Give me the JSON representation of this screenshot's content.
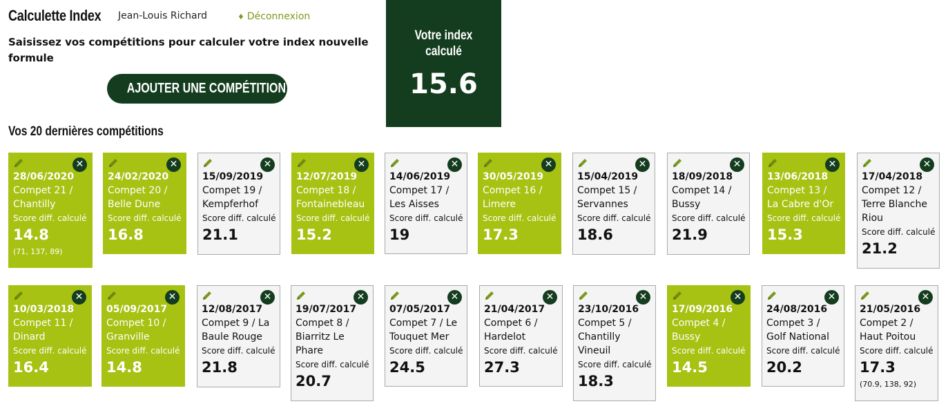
{
  "header": {
    "app_title": "Calculette Index",
    "user_name": "Jean-Louis Richard",
    "logout_label": "Déconnexion"
  },
  "intro": "Saisissez vos compétitions pour calculer votre index nouvelle formule",
  "add_button_label": "AJOUTER UNE COMPÉTITION",
  "index_panel": {
    "label": "Votre index calculé",
    "value": "15.6"
  },
  "section_title": "Vos 20 dernières compétitions",
  "score_label": "Score diff. calculé",
  "colors": {
    "dark_green": "#143d1f",
    "lime": "#a7c212"
  },
  "icons": {
    "edit": "pencil-icon",
    "delete": "close-circle-icon"
  },
  "competitions": [
    {
      "date": "28/06/2020",
      "name": "Compet 21 / Chantilly",
      "score": "14.8",
      "highlighted": true,
      "details": "(71, 137, 89)"
    },
    {
      "date": "24/02/2020",
      "name": "Compet 20 / Belle Dune",
      "score": "16.8",
      "highlighted": true
    },
    {
      "date": "15/09/2019",
      "name": "Compet 19 / Kempferhof",
      "score": "21.1",
      "highlighted": false
    },
    {
      "date": "12/07/2019",
      "name": "Compet 18 / Fontainebleau",
      "score": "15.2",
      "highlighted": true
    },
    {
      "date": "14/06/2019",
      "name": "Compet 17 / Les Aisses",
      "score": "19",
      "highlighted": false
    },
    {
      "date": "30/05/2019",
      "name": "Compet 16 / Limere",
      "score": "17.3",
      "highlighted": true
    },
    {
      "date": "15/04/2019",
      "name": "Compet 15 / Servannes",
      "score": "18.6",
      "highlighted": false
    },
    {
      "date": "18/09/2018",
      "name": "Compet 14 / Bussy",
      "score": "21.9",
      "highlighted": false
    },
    {
      "date": "13/06/2018",
      "name": "Compet 13 / La Cabre d'Or",
      "score": "15.3",
      "highlighted": true
    },
    {
      "date": "17/04/2018",
      "name": "Compet 12 / Terre Blanche Riou",
      "score": "21.2",
      "highlighted": false
    },
    {
      "date": "10/03/2018",
      "name": "Compet 11 / Dinard",
      "score": "16.4",
      "highlighted": true
    },
    {
      "date": "05/09/2017",
      "name": "Compet 10 / Granville",
      "score": "14.8",
      "highlighted": true
    },
    {
      "date": "12/08/2017",
      "name": "Compet 9 / La Baule Rouge",
      "score": "21.8",
      "highlighted": false
    },
    {
      "date": "19/07/2017",
      "name": "Compet 8 / Biarritz Le Phare",
      "score": "20.7",
      "highlighted": false
    },
    {
      "date": "07/05/2017",
      "name": "Compet 7 / Le Touquet Mer",
      "score": "24.5",
      "highlighted": false
    },
    {
      "date": "21/04/2017",
      "name": "Compet 6 / Hardelot",
      "score": "27.3",
      "highlighted": false
    },
    {
      "date": "23/10/2016",
      "name": "Compet 5 / Chantilly Vineuil",
      "score": "18.3",
      "highlighted": false
    },
    {
      "date": "17/09/2016",
      "name": "Compet 4 / Bussy",
      "score": "14.5",
      "highlighted": true
    },
    {
      "date": "24/08/2016",
      "name": "Compet 3 / Golf National",
      "score": "20.2",
      "highlighted": false
    },
    {
      "date": "21/05/2016",
      "name": "Compet 2 / Haut Poitou",
      "score": "17.3",
      "highlighted": false,
      "details": "(70.9, 138, 92)"
    }
  ]
}
